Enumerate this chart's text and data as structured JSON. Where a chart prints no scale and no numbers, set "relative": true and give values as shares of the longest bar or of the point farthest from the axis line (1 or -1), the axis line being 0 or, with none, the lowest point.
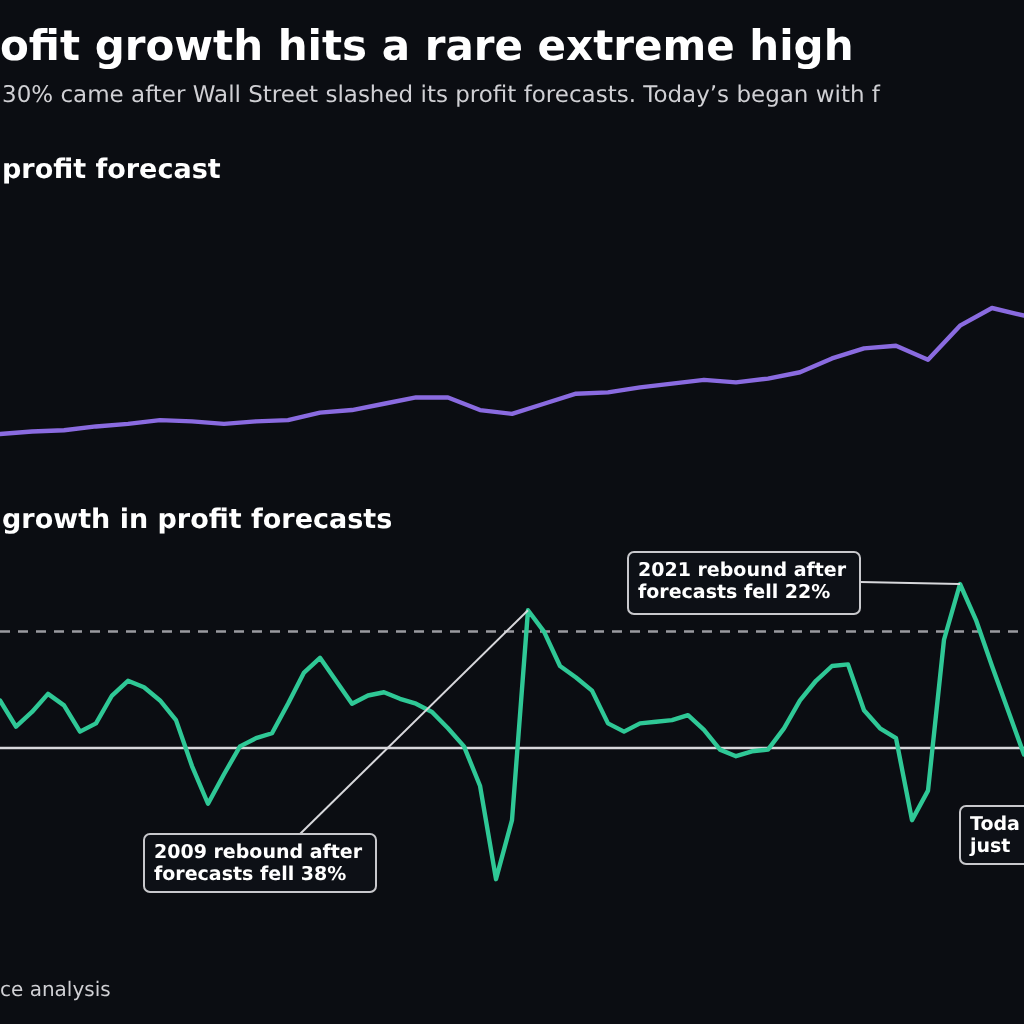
{
  "chart_data": [
    {
      "type": "line",
      "title": "ofit growth hits a rare extreme high",
      "subtitle": "30% came after Wall Street slashed its profit forecasts. Today’s began with f",
      "relative": true,
      "line_style": "solid",
      "categories": [
        null,
        null,
        null,
        null,
        null,
        null,
        null,
        null,
        null,
        null,
        null,
        null,
        null,
        null,
        null,
        null,
        null,
        null,
        null,
        null,
        null,
        null,
        null,
        null,
        null,
        null,
        null,
        null,
        null,
        null,
        null,
        null,
        null
      ],
      "series": [
        {
          "color": "#8a6be0",
          "values": [
            0,
            0.02,
            0.03,
            0.06,
            0.08,
            0.11,
            0.1,
            0.08,
            0.1,
            0.11,
            0.17,
            0.19,
            0.24,
            0.29,
            0.29,
            0.19,
            0.16,
            0.24,
            0.32,
            0.33,
            0.37,
            0.4,
            0.43,
            0.41,
            0.44,
            0.49,
            0.6,
            0.68,
            0.7,
            0.59,
            0.86,
            1,
            0.94
          ]
        }
      ],
      "annotations": [
        "profit forecast"
      ]
    },
    {
      "type": "line",
      "title": "growth in profit forecasts",
      "relative": true,
      "line_style": "solid",
      "categories": [
        null,
        null,
        null,
        null,
        null,
        null,
        null,
        null,
        null,
        null,
        null,
        null,
        null,
        null,
        null,
        null,
        null,
        null,
        null,
        null,
        null,
        null,
        null,
        null,
        null,
        null,
        null,
        null,
        null,
        null,
        null,
        null,
        null,
        null,
        null,
        null,
        null,
        null,
        null,
        null,
        null,
        null,
        null,
        null,
        null,
        null,
        null,
        null,
        null,
        null,
        null,
        null,
        null,
        null,
        null,
        null,
        null,
        null,
        null,
        null,
        null,
        null,
        null,
        null,
        null
      ],
      "series": [
        {
          "color": "#2fc896",
          "values": [
            0.29,
            0.13,
            0.22,
            0.33,
            0.26,
            0.1,
            0.15,
            0.32,
            0.41,
            0.37,
            0.29,
            0.17,
            -0.11,
            -0.34,
            -0.16,
            0.01,
            0.06,
            0.09,
            0.27,
            0.46,
            0.55,
            0.41,
            0.27,
            0.32,
            0.34,
            0.3,
            0.27,
            0.22,
            0.12,
            0.01,
            -0.23,
            -0.8,
            -0.44,
            0.84,
            0.71,
            0.5,
            0.43,
            0.35,
            0.15,
            0.1,
            0.15,
            0.16,
            0.17,
            0.2,
            0.11,
            -0.01,
            -0.05,
            -0.02,
            -0.01,
            0.12,
            0.29,
            0.41,
            0.5,
            0.51,
            0.23,
            0.12,
            0.06,
            -0.44,
            -0.26,
            0.66,
            1,
            0.78,
            0.5,
            0.23,
            -0.04
          ]
        }
      ],
      "ref_lines": [
        {
          "axis": "y",
          "value": 0.71,
          "color": "#9a9aa0",
          "line_style": "dashed"
        }
      ],
      "annotations": [
        "2009 rebound after\nforecasts fell 38%",
        "2021 rebound after\nforecasts fell 22%",
        "Toda\njust",
        "ce analysis"
      ]
    }
  ]
}
